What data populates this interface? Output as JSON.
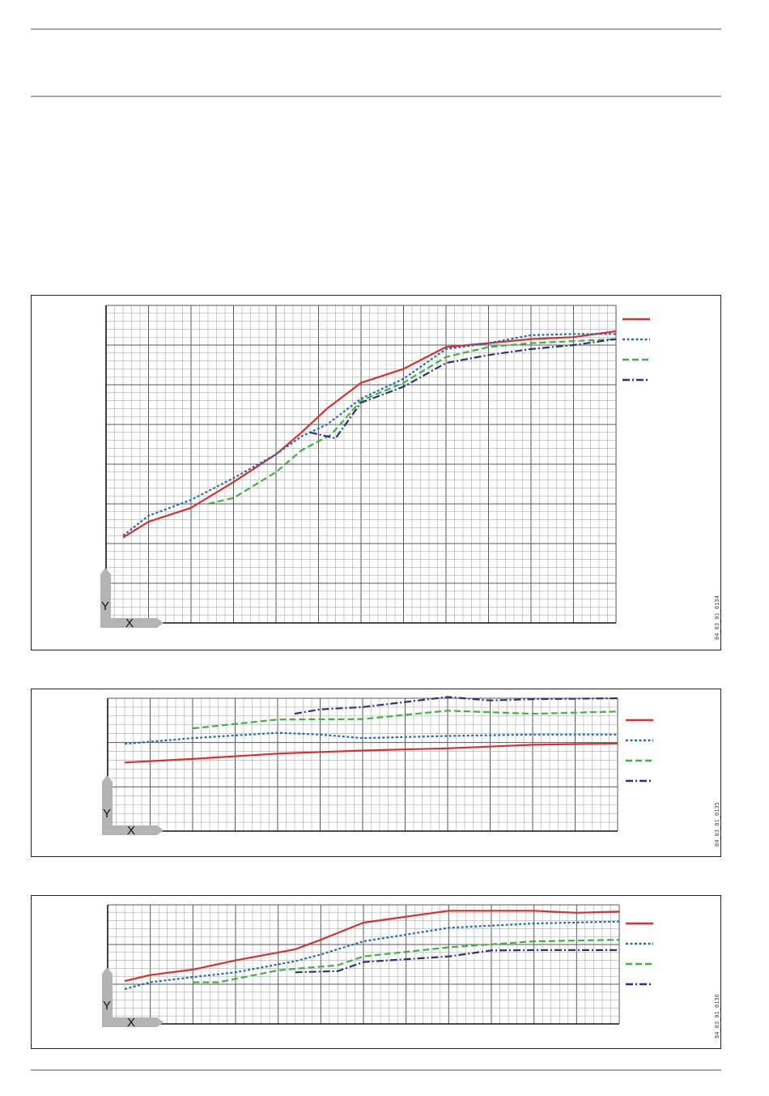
{
  "page": {
    "footer_rule": true
  },
  "axis_labels": {
    "y": "Y",
    "x": "X"
  },
  "colors": {
    "red": "#e02d2d",
    "blue": "#1f6fb8",
    "green": "#3cb53c",
    "navy": "#2b2f8a",
    "grid_minor": "#9a9a9a",
    "grid_major": "#5a5a5a",
    "axis_icon": "#b4b4b4"
  },
  "chart_data": [
    {
      "type": "line",
      "id": "84_03_01_0134",
      "code": "84_03_01_0134",
      "grid": true,
      "x_major_divisions": 12,
      "y_major_divisions": 8,
      "xlim": [
        0,
        120
      ],
      "ylim": [
        0,
        80
      ],
      "legend_placement": "top-right",
      "series": [
        {
          "color": "red",
          "style": "solid",
          "points": [
            [
              4,
              21.5
            ],
            [
              10,
              25.5
            ],
            [
              20,
              29
            ],
            [
              30,
              35.5
            ],
            [
              40,
              42.5
            ],
            [
              46,
              48
            ],
            [
              52,
              54
            ],
            [
              60,
              60.5
            ],
            [
              70,
              64
            ],
            [
              80,
              69.5
            ],
            [
              90,
              70.5
            ],
            [
              100,
              71.5
            ],
            [
              110,
              72
            ],
            [
              120,
              73.5
            ]
          ]
        },
        {
          "color": "blue",
          "style": "dotted",
          "points": [
            [
              4,
              22
            ],
            [
              10,
              27
            ],
            [
              20,
              31
            ],
            [
              30,
              36.5
            ],
            [
              40,
              42.5
            ],
            [
              46,
              47
            ],
            [
              52,
              50
            ],
            [
              60,
              56.5
            ],
            [
              70,
              61.5
            ],
            [
              80,
              69
            ],
            [
              90,
              70.5
            ],
            [
              100,
              72.5
            ],
            [
              110,
              72.8
            ],
            [
              120,
              72.8
            ]
          ]
        },
        {
          "color": "green",
          "style": "dashed",
          "points": [
            [
              24,
              30
            ],
            [
              30,
              31.5
            ],
            [
              40,
              38
            ],
            [
              46,
              43.5
            ],
            [
              53,
              47.5
            ],
            [
              60,
              56
            ],
            [
              70,
              60.5
            ],
            [
              80,
              67
            ],
            [
              90,
              69.5
            ],
            [
              100,
              70.5
            ],
            [
              110,
              71
            ],
            [
              120,
              71.5
            ]
          ]
        },
        {
          "color": "navy",
          "style": "dashdot",
          "points": [
            [
              48,
              48
            ],
            [
              54,
              46.5
            ],
            [
              60,
              55.5
            ],
            [
              70,
              59.5
            ],
            [
              80,
              65.5
            ],
            [
              90,
              67.5
            ],
            [
              100,
              69
            ],
            [
              110,
              70
            ],
            [
              120,
              71.5
            ]
          ]
        }
      ]
    },
    {
      "type": "line",
      "id": "84_03_01_0135",
      "code": "84_03_01_0135",
      "grid": true,
      "x_major_divisions": 12,
      "y_major_divisions": 3,
      "xlim": [
        0,
        120
      ],
      "ylim": [
        0,
        30
      ],
      "legend_placement": "top-right",
      "series": [
        {
          "color": "red",
          "style": "solid",
          "points": [
            [
              4,
              15.5
            ],
            [
              20,
              16.3
            ],
            [
              40,
              17.5
            ],
            [
              60,
              18.2
            ],
            [
              80,
              18.7
            ],
            [
              100,
              19.5
            ],
            [
              120,
              19.8
            ]
          ]
        },
        {
          "color": "blue",
          "style": "dotted",
          "points": [
            [
              4,
              19.7
            ],
            [
              20,
              21
            ],
            [
              40,
              22.2
            ],
            [
              50,
              21.8
            ],
            [
              60,
              21
            ],
            [
              80,
              21.5
            ],
            [
              100,
              21.8
            ],
            [
              120,
              21.8
            ]
          ]
        },
        {
          "color": "green",
          "style": "dashed",
          "points": [
            [
              20,
              23.2
            ],
            [
              40,
              25.2
            ],
            [
              60,
              25.3
            ],
            [
              80,
              27.2
            ],
            [
              100,
              26.5
            ],
            [
              120,
              27
            ]
          ]
        },
        {
          "color": "navy",
          "style": "dashdot",
          "points": [
            [
              44,
              26.5
            ],
            [
              50,
              27.5
            ],
            [
              60,
              28
            ],
            [
              80,
              30.3
            ],
            [
              90,
              29.5
            ],
            [
              100,
              29.8
            ],
            [
              120,
              30
            ]
          ]
        }
      ]
    },
    {
      "type": "line",
      "id": "84_03_01_0136",
      "code": "84_03_01_0136",
      "grid": true,
      "x_major_divisions": 12,
      "y_major_divisions": 3,
      "xlim": [
        0,
        120
      ],
      "ylim": [
        0,
        30
      ],
      "legend_placement": "top-right",
      "series": [
        {
          "color": "red",
          "style": "solid",
          "points": [
            [
              4,
              10.8
            ],
            [
              10,
              12.3
            ],
            [
              20,
              13.7
            ],
            [
              30,
              16
            ],
            [
              44,
              18.8
            ],
            [
              50,
              21.2
            ],
            [
              60,
              25.5
            ],
            [
              80,
              28.5
            ],
            [
              100,
              28.5
            ],
            [
              110,
              28
            ],
            [
              120,
              28.3
            ]
          ]
        },
        {
          "color": "blue",
          "style": "dotted",
          "points": [
            [
              4,
              8.8
            ],
            [
              10,
              10.5
            ],
            [
              20,
              11.8
            ],
            [
              30,
              13
            ],
            [
              44,
              15.8
            ],
            [
              50,
              17.5
            ],
            [
              60,
              20.8
            ],
            [
              80,
              24.2
            ],
            [
              100,
              25.3
            ],
            [
              120,
              25.8
            ]
          ]
        },
        {
          "color": "green",
          "style": "dashed",
          "points": [
            [
              20,
              10.5
            ],
            [
              26,
              10.5
            ],
            [
              40,
              13.5
            ],
            [
              54,
              14.8
            ],
            [
              60,
              17
            ],
            [
              80,
              19.3
            ],
            [
              100,
              20.8
            ],
            [
              120,
              21.2
            ]
          ]
        },
        {
          "color": "navy",
          "style": "dashdot",
          "points": [
            [
              44,
              13
            ],
            [
              54,
              13.3
            ],
            [
              60,
              15.6
            ],
            [
              80,
              17
            ],
            [
              90,
              18.5
            ],
            [
              100,
              18.6
            ],
            [
              120,
              18.6
            ]
          ]
        }
      ]
    }
  ]
}
